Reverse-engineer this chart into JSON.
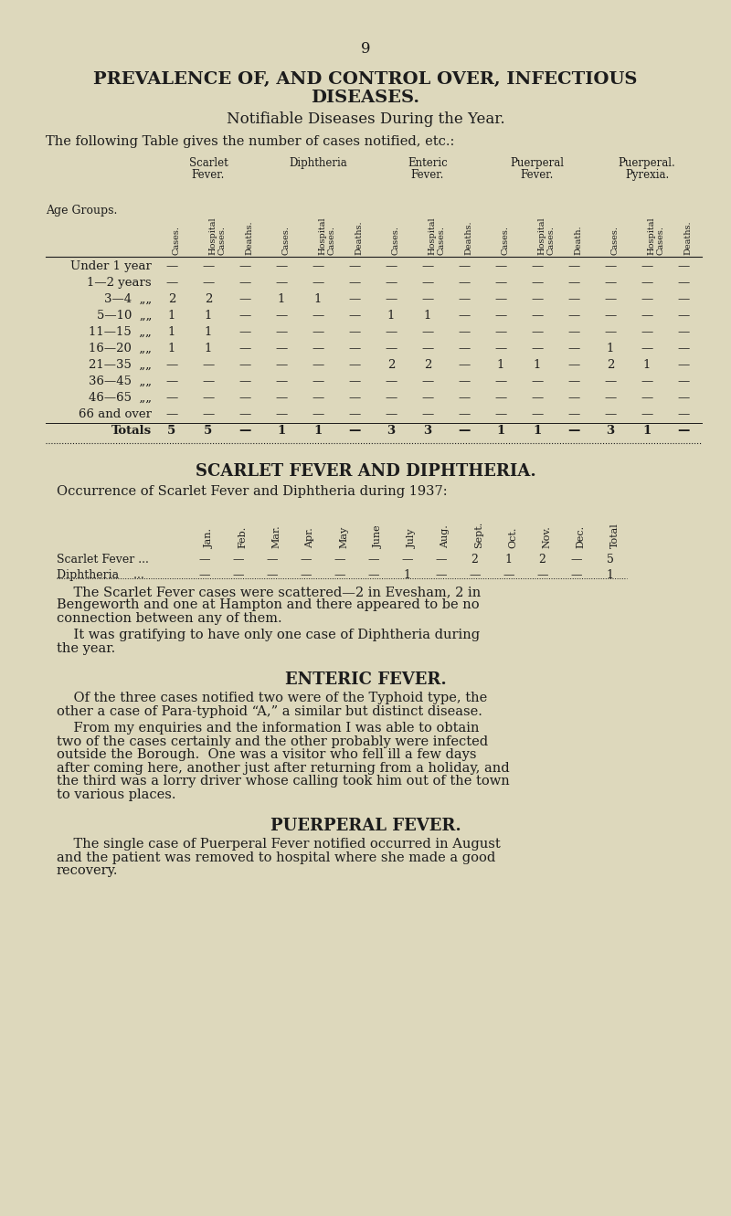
{
  "bg_color": "#ddd8bc",
  "text_color": "#1c1c1c",
  "page_number": "9",
  "title1": "PREVALENCE OF, AND CONTROL OVER, INFECTIOUS",
  "title2": "DISEASES.",
  "subtitle": "Notifiable Diseases During the Year.",
  "intro": "The following Table gives the number of cases notified, etc.:",
  "disease_headers": [
    "Scarlet\nFever.",
    "Diphtheria",
    "Enteric\nFever.",
    "Puerperal\nFever.",
    "Puerperal.\nPyrexia."
  ],
  "col_sub_headers": [
    "Cases.",
    "Hospital\nCases.",
    "Deaths.",
    "Cases.",
    "Hospital\nCases.",
    "Deaths.",
    "Cases.",
    "Hospital\nCases.",
    "Deaths.",
    "Cases.",
    "Hospital\nCases.",
    "Death.",
    "Cases.",
    "Hospital\nCases.",
    "Deaths."
  ],
  "age_groups": [
    "Under 1 year",
    "1—2 years",
    "3—4",
    "5—10",
    "11—15",
    "16—20",
    "21—35",
    "36—45",
    "46—65",
    "66 and over",
    "Totals"
  ],
  "age_suffix": [
    "",
    "",
    "„„",
    "„„",
    "„„",
    "„„",
    "„„",
    "„„",
    "„„",
    "",
    ""
  ],
  "table_data": [
    [
      "—",
      "—",
      "—",
      "—",
      "—",
      "—",
      "—",
      "—",
      "—",
      "—",
      "—",
      "—",
      "—",
      "—",
      "—"
    ],
    [
      "—",
      "—",
      "—",
      "—",
      "—",
      "—",
      "—",
      "—",
      "—",
      "—",
      "—",
      "—",
      "—",
      "—",
      "—"
    ],
    [
      "2",
      "2",
      "—",
      "1",
      "1",
      "—",
      "—",
      "—",
      "—",
      "—",
      "—",
      "—",
      "—",
      "—",
      "—"
    ],
    [
      "1",
      "1",
      "—",
      "—",
      "—",
      "—",
      "1",
      "1",
      "—",
      "—",
      "—",
      "—",
      "—",
      "—",
      "—"
    ],
    [
      "1",
      "1",
      "—",
      "—",
      "—",
      "—",
      "—",
      "—",
      "—",
      "—",
      "—",
      "—",
      "—",
      "—",
      "—"
    ],
    [
      "1",
      "1",
      "—",
      "—",
      "—",
      "—",
      "—",
      "—",
      "—",
      "—",
      "—",
      "—",
      "1",
      "—",
      "—"
    ],
    [
      "—",
      "—",
      "—",
      "—",
      "—",
      "—",
      "2",
      "2",
      "—",
      "1",
      "1",
      "—",
      "2",
      "1",
      "—"
    ],
    [
      "—",
      "—",
      "—",
      "—",
      "—",
      "—",
      "—",
      "—",
      "—",
      "—",
      "—",
      "—",
      "—",
      "—",
      "—"
    ],
    [
      "—",
      "—",
      "—",
      "—",
      "—",
      "—",
      "—",
      "—",
      "—",
      "—",
      "—",
      "—",
      "—",
      "—",
      "—"
    ],
    [
      "—",
      "—",
      "—",
      "—",
      "—",
      "—",
      "—",
      "—",
      "—",
      "—",
      "—",
      "—",
      "—",
      "—",
      "—"
    ],
    [
      "5",
      "5",
      "—",
      "1",
      "1",
      "—",
      "3",
      "3",
      "—",
      "1",
      "1",
      "—",
      "3",
      "1",
      "—"
    ]
  ],
  "section2_title": "SCARLET FEVER AND DIPHTHERIA.",
  "section2_subtitle": "Occurrence of Scarlet Fever and Diphtheria during 1937:",
  "month_headers": [
    "Jan.",
    "Feb.",
    "Mar.",
    "Apr.",
    "May",
    "June",
    "July",
    "Aug.",
    "Sept.",
    "Oct.",
    "Nov.",
    "Dec.",
    "Total"
  ],
  "sf_row": [
    "—",
    "—",
    "—",
    "—",
    "—",
    "—",
    "—",
    "—",
    "2",
    "1",
    "2",
    "—",
    "5"
  ],
  "diph_row": [
    "—",
    "—",
    "—",
    "—",
    "—",
    "—",
    "1",
    "—",
    "—",
    "—",
    "—",
    "—",
    "1"
  ],
  "sf_label": "Scarlet Fever ...",
  "diph_label": "Diphtheria    ...",
  "para1": "    The Scarlet Fever cases were scattered—2 in Evesham, 2 in\nBengeworth and one at Hampton and there appeared to be no\nconnection between any of them.",
  "para2": "    It was gratifying to have only one case of Diphtheria during\nthe year.",
  "section3_title": "ENTERIC FEVER.",
  "para3": "    Of the three cases notified two were of the Typhoid type, the\nother a case of Para-typhoid “A,” a similar but distinct disease.",
  "para4": "    From my enquiries and the information I was able to obtain\ntwo of the cases certainly and the other probably were infected\noutside the Borough.  One was a visitor who fell ill a few days\nafter coming here, another just after returning from a holiday, and\nthe third was a lorry driver whose calling took him out of the town\nto various places.",
  "section4_title": "PUERPERAL FEVER.",
  "para5": "    The single case of Puerperal Fever notified occurred in August\nand the patient was removed to hospital where she made a good\nrecovery."
}
